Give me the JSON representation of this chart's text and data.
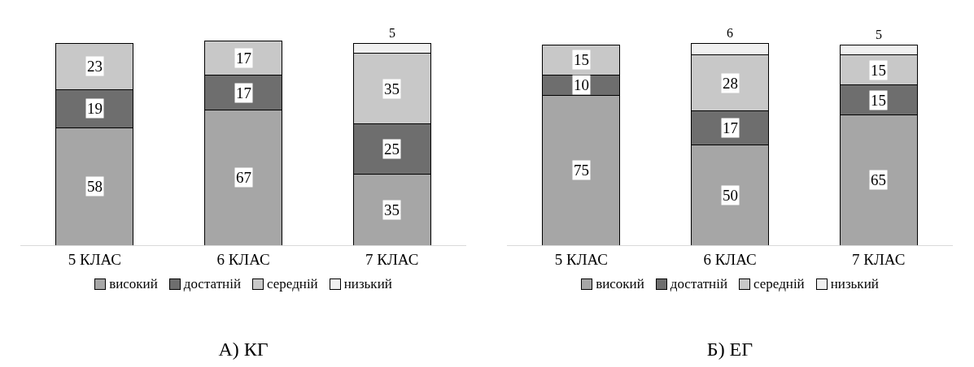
{
  "chart_data": [
    {
      "type": "bar",
      "title": "А) КГ",
      "categories": [
        "5 КЛАС",
        "6 КЛАС",
        "7 КЛАС"
      ],
      "stacked": true,
      "data_labels": true,
      "legend": "bottom",
      "grid": false,
      "series": [
        {
          "name": "високий",
          "color": "#a6a6a6",
          "values": [
            58,
            67,
            35
          ]
        },
        {
          "name": "достатній",
          "color": "#6e6e6e",
          "values": [
            19,
            17,
            25
          ]
        },
        {
          "name": "середній",
          "color": "#c8c8c8",
          "values": [
            23,
            17,
            35
          ]
        },
        {
          "name": "низький",
          "color": "#f0f0f0",
          "values": [
            null,
            null,
            5
          ]
        }
      ]
    },
    {
      "type": "bar",
      "title": "Б) ЕГ",
      "categories": [
        "5 КЛАС",
        "6 КЛАС",
        "7 КЛАС"
      ],
      "stacked": true,
      "data_labels": true,
      "legend": "bottom",
      "grid": false,
      "series": [
        {
          "name": "високий",
          "color": "#a6a6a6",
          "values": [
            75,
            50,
            65
          ]
        },
        {
          "name": "достатній",
          "color": "#6e6e6e",
          "values": [
            10,
            17,
            15
          ]
        },
        {
          "name": "середній",
          "color": "#c8c8c8",
          "values": [
            15,
            28,
            15
          ]
        },
        {
          "name": "низький",
          "color": "#f0f0f0",
          "values": [
            null,
            6,
            5
          ]
        }
      ]
    }
  ]
}
